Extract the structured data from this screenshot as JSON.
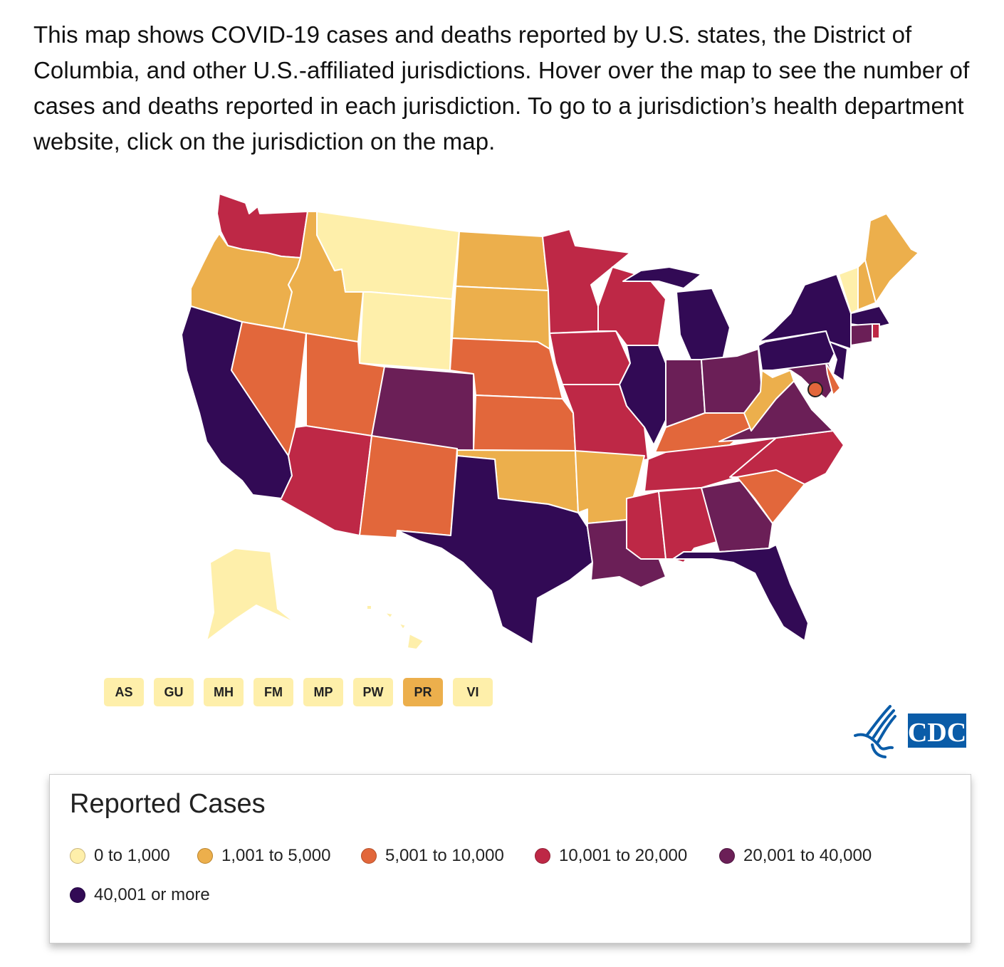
{
  "intro": "This map shows COVID-19 cases and deaths reported by U.S. states, the District of Columbia, and other U.S.-affiliated jurisdictions. Hover over the map to see the number of cases and deaths reported in each jurisdiction. To go to a jurisdiction’s health department website, click on the jurisdiction on the map.",
  "colors": [
    "#FEEFAA",
    "#ECAF4C",
    "#E2673B",
    "#BE2846",
    "#6B1F57",
    "#320A55"
  ],
  "legend": {
    "title": "Reported Cases",
    "bins": [
      "0 to 1,000",
      "1,001 to 5,000",
      "5,001 to 10,000",
      "10,001 to 20,000",
      "20,001 to 40,000",
      "40,001 or more"
    ]
  },
  "state_bins": {
    "WA": 3,
    "OR": 1,
    "CA": 5,
    "NV": 2,
    "ID": 1,
    "MT": 0,
    "WY": 0,
    "UT": 2,
    "AZ": 3,
    "CO": 4,
    "NM": 2,
    "ND": 1,
    "SD": 1,
    "NE": 2,
    "KS": 2,
    "OK": 1,
    "TX": 5,
    "MN": 3,
    "IA": 3,
    "MO": 3,
    "AR": 1,
    "LA": 4,
    "WI": 3,
    "IL": 5,
    "MI": 5,
    "IN": 4,
    "OH": 4,
    "KY": 2,
    "TN": 3,
    "MS": 3,
    "AL": 3,
    "GA": 4,
    "FL": 5,
    "SC": 2,
    "NC": 3,
    "VA": 4,
    "WV": 1,
    "MD": 4,
    "DE": 2,
    "PA": 5,
    "NJ": 5,
    "NY": 5,
    "CT": 4,
    "RI": 3,
    "MA": 5,
    "VT": 0,
    "NH": 1,
    "ME": 1,
    "AK": 0,
    "HI": 0,
    "DC": 2
  },
  "territories": [
    {
      "label": "AS",
      "bin": 0
    },
    {
      "label": "GU",
      "bin": 0
    },
    {
      "label": "MH",
      "bin": 0
    },
    {
      "label": "FM",
      "bin": 0
    },
    {
      "label": "MP",
      "bin": 0
    },
    {
      "label": "PW",
      "bin": 0
    },
    {
      "label": "PR",
      "bin": 1
    },
    {
      "label": "VI",
      "bin": 0
    }
  ],
  "logo": "CDC"
}
